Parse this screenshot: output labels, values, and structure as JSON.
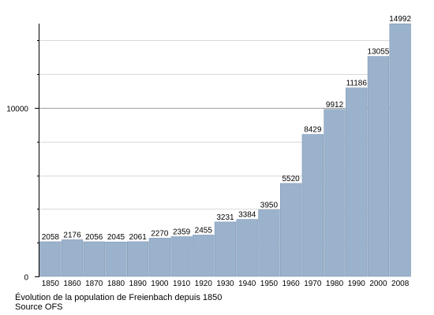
{
  "chart_data": {
    "type": "bar",
    "categories": [
      "1850",
      "1860",
      "1870",
      "1880",
      "1890",
      "1900",
      "1910",
      "1920",
      "1930",
      "1940",
      "1950",
      "1960",
      "1970",
      "1980",
      "1990",
      "2000",
      "2008"
    ],
    "values": [
      2058,
      2176,
      2056,
      2045,
      2061,
      2270,
      2359,
      2455,
      3231,
      3384,
      3950,
      5520,
      8429,
      9912,
      11186,
      13055,
      14992
    ],
    "ylim": [
      0,
      15000
    ],
    "y_ticks": [
      "0",
      "10000"
    ],
    "grid": true,
    "bar_color": "#9bb2cc",
    "bar_edge_color": "#7f98b5",
    "grid_color": "#d9d9d9",
    "major_grid_color": "#a0a0a0",
    "caption": [
      "Évolution de la population de Freienbach depuis 1850",
      "Source OFS"
    ]
  }
}
